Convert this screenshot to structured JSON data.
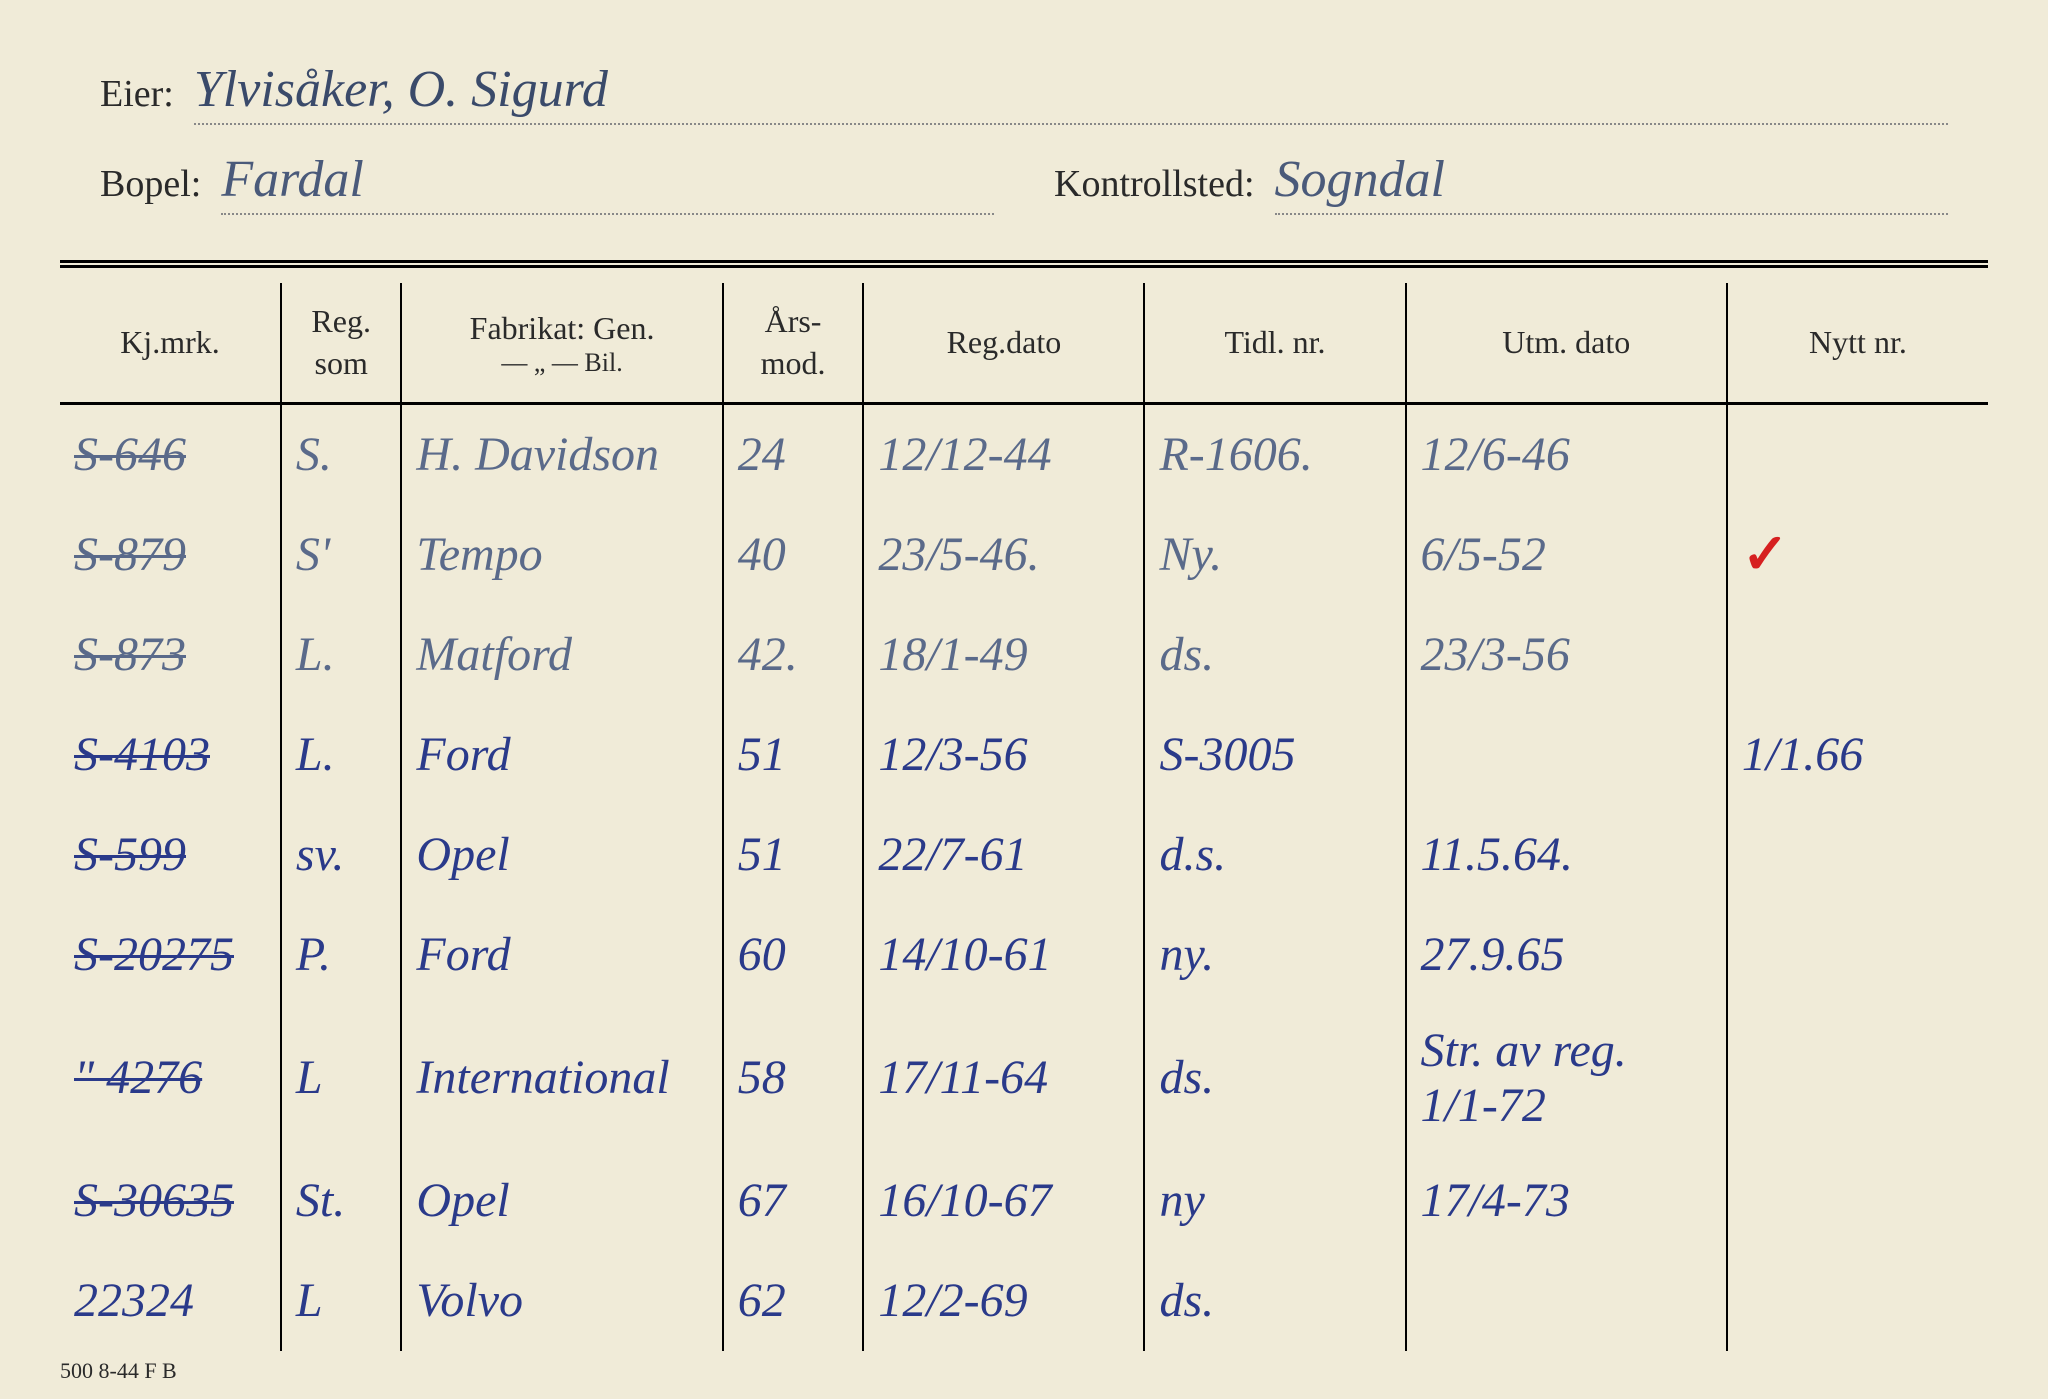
{
  "header": {
    "eier_label": "Eier:",
    "eier_value": "Ylvisåker, O. Sigurd",
    "bopel_label": "Bopel:",
    "bopel_value": "Fardal",
    "kontrollsted_label": "Kontrollsted:",
    "kontrollsted_value": "Sogndal"
  },
  "columns": {
    "kjmrk": "Kj.mrk.",
    "reg_som": "Reg. som",
    "fabrikat": "Fabrikat: Gen.",
    "fabrikat_sub": "— „ —   Bil.",
    "arsmod": "Års-mod.",
    "regdato": "Reg.dato",
    "tidlnr": "Tidl. nr.",
    "utmdato": "Utm. dato",
    "nyttnr": "Nytt nr."
  },
  "rows": [
    {
      "kjmrk": "S-646",
      "kjmrk_strike": true,
      "reg_som": "S.",
      "fabrikat": "H. Davidson",
      "arsmod": "24",
      "regdato": "12/12-44",
      "tidlnr": "R-1606.",
      "utmdato": "12/6-46",
      "nyttnr": "",
      "ink": "ink-gray"
    },
    {
      "kjmrk": "S-879",
      "kjmrk_strike": true,
      "reg_som": "S'",
      "fabrikat": "Tempo",
      "arsmod": "40",
      "regdato": "23/5-46.",
      "tidlnr": "Ny.",
      "utmdato": "6/5-52",
      "nyttnr": "✓",
      "nyttnr_red": true,
      "ink": "ink-gray"
    },
    {
      "kjmrk": "S-873",
      "kjmrk_strike": true,
      "reg_som": "L.",
      "fabrikat": "Matford",
      "arsmod": "42.",
      "regdato": "18/1-49",
      "tidlnr": "ds.",
      "utmdato": "23/3-56",
      "nyttnr": "",
      "ink": "ink-gray"
    },
    {
      "kjmrk": "S-4103",
      "kjmrk_strike": true,
      "reg_som": "L.",
      "fabrikat": "Ford",
      "arsmod": "51",
      "regdato": "12/3-56",
      "tidlnr": "S-3005",
      "utmdato": "",
      "nyttnr": "1/1.66",
      "ink": "ink-blue"
    },
    {
      "kjmrk": "S-599",
      "kjmrk_strike": true,
      "reg_som": "sv.",
      "fabrikat": "Opel",
      "arsmod": "51",
      "regdato": "22/7-61",
      "tidlnr": "d.s.",
      "utmdato": "11.5.64.",
      "nyttnr": "",
      "ink": "ink-blue"
    },
    {
      "kjmrk": "S-20275",
      "kjmrk_strike": true,
      "reg_som": "P.",
      "fabrikat": "Ford",
      "arsmod": "60",
      "regdato": "14/10-61",
      "tidlnr": "ny.",
      "utmdato": "27.9.65",
      "nyttnr": "",
      "ink": "ink-blue"
    },
    {
      "kjmrk": "\" 4276",
      "kjmrk_strike": true,
      "reg_som": "L",
      "fabrikat": "International",
      "arsmod": "58",
      "regdato": "17/11-64",
      "tidlnr": "ds.",
      "utmdato": "Str. av reg. 1/1-72",
      "nyttnr": "",
      "ink": "ink-blue"
    },
    {
      "kjmrk": "S-30635",
      "kjmrk_strike": true,
      "reg_som": "St.",
      "fabrikat": "Opel",
      "arsmod": "67",
      "regdato": "16/10-67",
      "tidlnr": "ny",
      "utmdato": "17/4-73",
      "nyttnr": "",
      "ink": "ink-blue"
    },
    {
      "kjmrk": "22324",
      "kjmrk_strike": false,
      "reg_som": "L",
      "fabrikat": "Volvo",
      "arsmod": "62",
      "regdato": "12/2-69",
      "tidlnr": "ds.",
      "utmdato": "",
      "nyttnr": "",
      "ink": "ink-blue"
    }
  ],
  "footer": "500 8-44 F B"
}
